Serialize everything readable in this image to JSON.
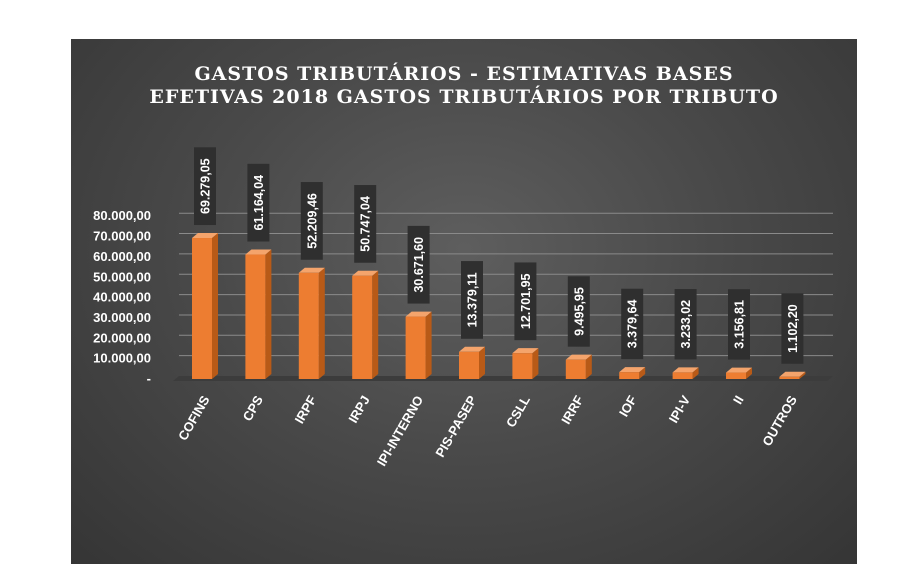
{
  "chart_data": {
    "type": "bar",
    "title_lines": [
      "GASTOS TRIBUTÁRIOS - ESTIMATIVAS BASES",
      "EFETIVAS 2018 GASTOS TRIBUTÁRIOS POR TRIBUTO"
    ],
    "categories": [
      "COFINS",
      "CPS",
      "IRPF",
      "IRPJ",
      "IPI-INTERNO",
      "PIS-PASEP",
      "CSLL",
      "IRRF",
      "IOF",
      "IPI-V",
      "II",
      "OUTROS"
    ],
    "values": [
      69279.05,
      61164.04,
      52209.46,
      50747.04,
      30671.6,
      13379.11,
      12701.95,
      9495.95,
      3379.64,
      3233.02,
      3156.81,
      1102.2
    ],
    "value_labels": [
      "69.279,05",
      "61.164,04",
      "52.209,46",
      "50.747,04",
      "30.671,60",
      "13.379,11",
      "12.701,95",
      "9.495,95",
      "3.379,64",
      "3.233,02",
      "3.156,81",
      "1.102,20"
    ],
    "y_tick_labels": [
      "-",
      "10.000,00",
      "20.000,00",
      "30.000,00",
      "40.000,00",
      "50.000,00",
      "60.000,00",
      "70.000,00",
      "80.000,00"
    ],
    "y_tick_values": [
      0,
      10000,
      20000,
      30000,
      40000,
      50000,
      60000,
      70000,
      80000
    ],
    "ylim": [
      0,
      80000
    ],
    "xlabel": "",
    "ylabel": "",
    "grid": true,
    "legend": false,
    "colors": {
      "bar_front": "#ed7d31",
      "bar_side": "#b85a17",
      "bar_top": "#f4a46c",
      "label_box": "#2f2f2f",
      "gridline": "#8a8a8a",
      "background": "#4a4a4a",
      "text": "#ffffff"
    }
  }
}
